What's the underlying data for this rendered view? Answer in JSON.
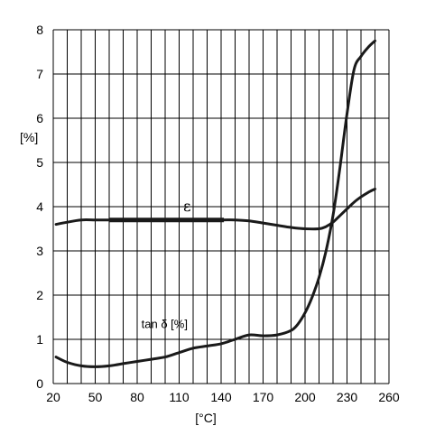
{
  "chart_data": {
    "type": "line",
    "title": "",
    "xlabel": "[°C]",
    "ylabel": "[%]",
    "xlim": [
      20,
      260
    ],
    "ylim": [
      0,
      8
    ],
    "x_ticks": [
      20,
      50,
      80,
      110,
      140,
      170,
      200,
      230,
      260
    ],
    "x_tick_labels": [
      "20",
      "50",
      "80",
      "110",
      "140",
      "170",
      "200",
      "230",
      "260"
    ],
    "y_ticks": [
      0,
      1,
      2,
      3,
      4,
      5,
      6,
      7,
      8
    ],
    "y_tick_labels": [
      "0",
      "1",
      "2",
      "3",
      "4",
      "5",
      "6",
      "7",
      "8"
    ],
    "x_grid_step": 10,
    "grid": true,
    "legend": "none",
    "series": [
      {
        "name": "ε",
        "x": [
          22,
          30,
          40,
          50,
          60,
          80,
          100,
          120,
          140,
          150,
          160,
          170,
          180,
          190,
          200,
          210,
          215,
          220,
          225,
          230,
          235,
          240,
          245,
          250
        ],
        "y": [
          3.6,
          3.65,
          3.7,
          3.7,
          3.7,
          3.7,
          3.7,
          3.7,
          3.7,
          3.7,
          3.68,
          3.63,
          3.58,
          3.53,
          3.5,
          3.5,
          3.55,
          3.65,
          3.8,
          3.95,
          4.1,
          4.22,
          4.32,
          4.4
        ]
      },
      {
        "name": "tan δ [%]",
        "x": [
          22,
          30,
          40,
          50,
          60,
          70,
          80,
          90,
          100,
          110,
          120,
          130,
          140,
          150,
          160,
          170,
          180,
          190,
          195,
          200,
          205,
          210,
          215,
          220,
          225,
          230,
          235,
          240,
          245,
          250
        ],
        "y": [
          0.6,
          0.48,
          0.4,
          0.38,
          0.4,
          0.45,
          0.5,
          0.55,
          0.6,
          0.7,
          0.8,
          0.85,
          0.9,
          1.0,
          1.1,
          1.08,
          1.1,
          1.2,
          1.35,
          1.6,
          1.95,
          2.4,
          3.0,
          3.8,
          4.9,
          6.1,
          7.1,
          7.4,
          7.6,
          7.75
        ]
      }
    ],
    "annotations": [
      {
        "text": "ε",
        "x": 113,
        "y": 3.9
      },
      {
        "text": "tan δ [%]",
        "x": 83,
        "y": 1.26
      }
    ],
    "highlight": {
      "series": "ε",
      "x_range": [
        60,
        142
      ]
    }
  }
}
